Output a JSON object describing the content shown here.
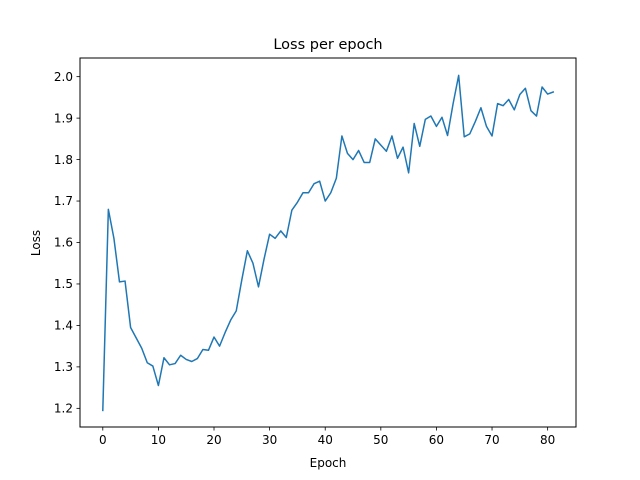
{
  "chart_data": {
    "type": "line",
    "title": "Loss per epoch",
    "xlabel": "Epoch",
    "ylabel": "Loss",
    "xlim": [
      -4.1,
      85.1
    ],
    "ylim": [
      1.155,
      2.045
    ],
    "xticks": [
      0,
      10,
      20,
      30,
      40,
      50,
      60,
      70,
      80
    ],
    "yticks": [
      1.2,
      1.3,
      1.4,
      1.5,
      1.6,
      1.7,
      1.8,
      1.9,
      2.0
    ],
    "xtick_labels": [
      "0",
      "10",
      "20",
      "30",
      "40",
      "50",
      "60",
      "70",
      "80"
    ],
    "ytick_labels": [
      "1.2",
      "1.3",
      "1.4",
      "1.5",
      "1.6",
      "1.7",
      "1.8",
      "1.9",
      "2.0"
    ],
    "grid": false,
    "series": [
      {
        "color": "#1f77b4",
        "x": [
          0,
          1,
          2,
          3,
          4,
          5,
          6,
          7,
          8,
          9,
          10,
          11,
          12,
          13,
          14,
          15,
          16,
          17,
          18,
          19,
          20,
          21,
          22,
          23,
          24,
          25,
          26,
          27,
          28,
          29,
          30,
          31,
          32,
          33,
          34,
          35,
          36,
          37,
          38,
          39,
          40,
          41,
          42,
          43,
          44,
          45,
          46,
          47,
          48,
          49,
          50,
          51,
          52,
          53,
          54,
          55,
          56,
          57,
          58,
          59,
          60,
          61,
          62,
          63,
          64,
          65,
          66,
          67,
          68,
          69,
          70,
          71,
          72,
          73,
          74,
          75,
          76,
          77,
          78,
          79,
          80,
          81
        ],
        "values": [
          1.195,
          1.68,
          1.61,
          1.505,
          1.507,
          1.395,
          1.37,
          1.345,
          1.31,
          1.302,
          1.255,
          1.322,
          1.305,
          1.308,
          1.328,
          1.318,
          1.313,
          1.32,
          1.342,
          1.34,
          1.372,
          1.35,
          1.383,
          1.413,
          1.435,
          1.51,
          1.58,
          1.55,
          1.493,
          1.56,
          1.62,
          1.61,
          1.628,
          1.612,
          1.678,
          1.697,
          1.72,
          1.72,
          1.742,
          1.748,
          1.7,
          1.72,
          1.755,
          1.857,
          1.815,
          1.8,
          1.822,
          1.793,
          1.793,
          1.85,
          1.835,
          1.82,
          1.857,
          1.803,
          1.83,
          1.768,
          1.887,
          1.832,
          1.897,
          1.905,
          1.88,
          1.902,
          1.858,
          1.935,
          2.003,
          1.855,
          1.862,
          1.892,
          1.925,
          1.88,
          1.857,
          1.935,
          1.93,
          1.945,
          1.92,
          1.957,
          1.972,
          1.918,
          1.905,
          1.975,
          1.958,
          1.963
        ]
      }
    ]
  }
}
